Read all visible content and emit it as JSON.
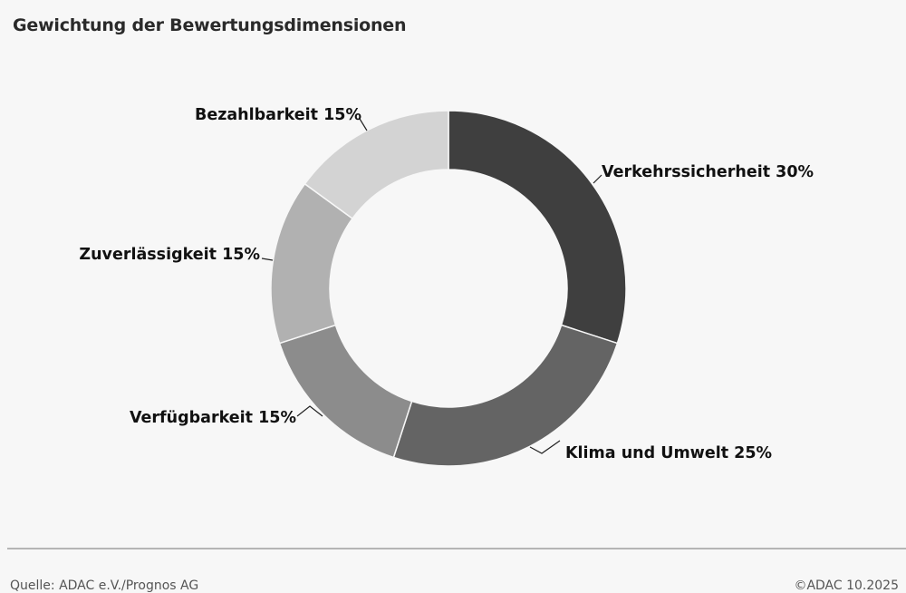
{
  "chart_data": {
    "type": "pie",
    "donut": true,
    "title": "Gewichtung der Bewertungsdimensionen",
    "categories": [
      "Verkehrssicherheit",
      "Klima und Umwelt",
      "Verfügbarkeit",
      "Zuverlässigkeit",
      "Bezahlbarkeit"
    ],
    "values": [
      30,
      25,
      15,
      15,
      15
    ],
    "unit": "%",
    "labels": [
      "Verkehrssicherheit 30%",
      "Klima und Umwelt 25%",
      "Verfügbarkeit 15%",
      "Zuverlässigkeit 15%",
      "Bezahlbarkeit 15%"
    ],
    "colors": [
      "#3f3f3f",
      "#646464",
      "#8c8c8c",
      "#b1b1b1",
      "#d3d3d3"
    ]
  },
  "footer": {
    "source": "Quelle: ADAC e.V./Prognos AG",
    "copyright": "©ADAC 10.2025"
  }
}
